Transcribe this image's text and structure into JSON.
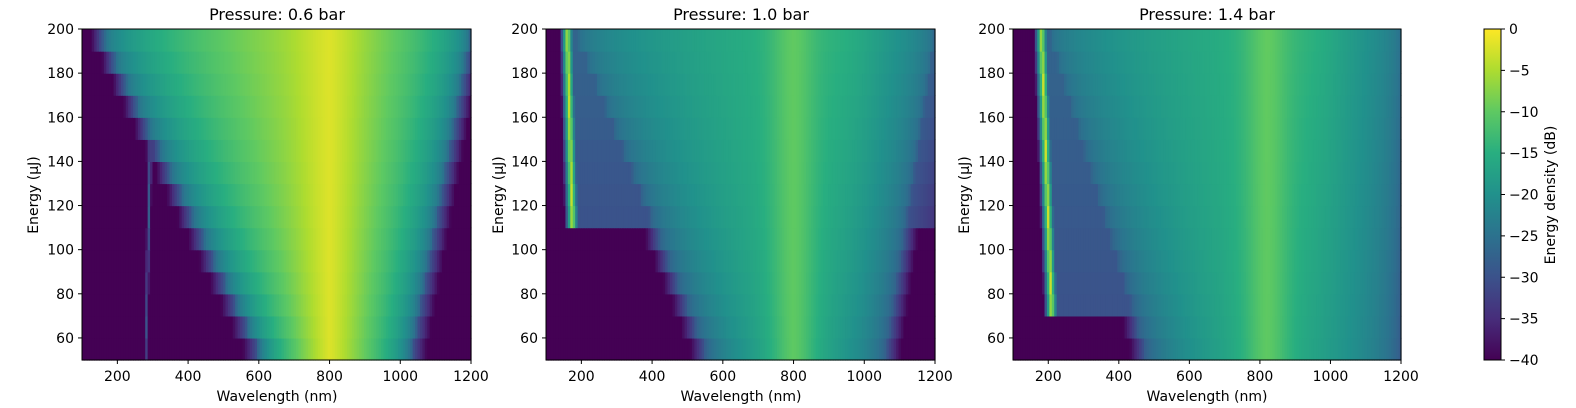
{
  "chart_data": [
    {
      "type": "heatmap",
      "title": "Pressure: 0.6 bar",
      "xlabel": "Wavelength (nm)",
      "ylabel": "Energy (μJ)",
      "xlim": [
        100,
        1200
      ],
      "ylim": [
        50,
        200
      ],
      "xticks": [
        200,
        400,
        600,
        800,
        1000,
        1200
      ],
      "yticks": [
        60,
        80,
        100,
        120,
        140,
        160,
        180,
        200
      ],
      "energies": [
        50,
        60,
        70,
        80,
        90,
        100,
        110,
        120,
        130,
        140,
        150,
        160,
        170,
        180,
        190,
        200
      ],
      "features": {
        "main_peak_center_nm": 800,
        "main_peak_high_level_db": -2,
        "main_band_edges_nm_at_low_energy": [
          610,
          1030
        ],
        "main_band_edges_nm_at_high_energy": [
          150,
          1200
        ],
        "uv_line_nm_at_low_energy": 280,
        "uv_line_nm_at_high_energy": 300,
        "uv_line_level_db": -30,
        "background_level_db": -40
      }
    },
    {
      "type": "heatmap",
      "title": "Pressure: 1.0 bar",
      "xlabel": "Wavelength (nm)",
      "ylabel": "Energy (μJ)",
      "xlim": [
        100,
        1200
      ],
      "ylim": [
        50,
        200
      ],
      "xticks": [
        200,
        400,
        600,
        800,
        1000,
        1200
      ],
      "yticks": [
        60,
        80,
        100,
        120,
        140,
        160,
        180,
        200
      ],
      "energies": [
        50,
        60,
        70,
        80,
        90,
        100,
        110,
        120,
        130,
        140,
        150,
        160,
        170,
        180,
        190,
        200
      ],
      "features": {
        "main_peak_center_nm": 800,
        "main_peak_high_level_db": -12,
        "main_band_edges_nm_at_low_energy": [
          560,
          1060
        ],
        "main_band_edges_nm_at_high_energy": [
          180,
          1200
        ],
        "dispersive_wave_onset_energy": 110,
        "dispersive_wave_nm_at_onset": 175,
        "dispersive_wave_nm_at_high_energy": 160,
        "dispersive_wave_level_db": -3,
        "background_level_db": -40
      }
    },
    {
      "type": "heatmap",
      "title": "Pressure: 1.4 bar",
      "xlabel": "Wavelength (nm)",
      "ylabel": "Energy (μJ)",
      "xlim": [
        100,
        1200
      ],
      "ylim": [
        50,
        200
      ],
      "xticks": [
        200,
        400,
        600,
        800,
        1000,
        1200
      ],
      "yticks": [
        60,
        80,
        100,
        120,
        140,
        160,
        180,
        200
      ],
      "energies": [
        50,
        60,
        70,
        80,
        90,
        100,
        110,
        120,
        130,
        140,
        150,
        160,
        170,
        180,
        190,
        200
      ],
      "features": {
        "main_peak_center_nm": 820,
        "main_peak_high_level_db": -12,
        "main_band_edges_nm_at_low_energy": [
          480,
          1200
        ],
        "main_band_edges_nm_at_high_energy": [
          200,
          1200
        ],
        "dispersive_wave_onset_energy": 70,
        "dispersive_wave_nm_at_onset": 210,
        "dispersive_wave_nm_at_high_energy": 180,
        "dispersive_wave_level_db": -3,
        "background_level_db": -40
      }
    }
  ],
  "colorbar": {
    "label": "Energy density (dB)",
    "range": [
      -40,
      0
    ],
    "ticks": [
      0,
      -5,
      -10,
      -15,
      -20,
      -25,
      -30,
      -35,
      -40
    ],
    "colormap": "viridis"
  }
}
